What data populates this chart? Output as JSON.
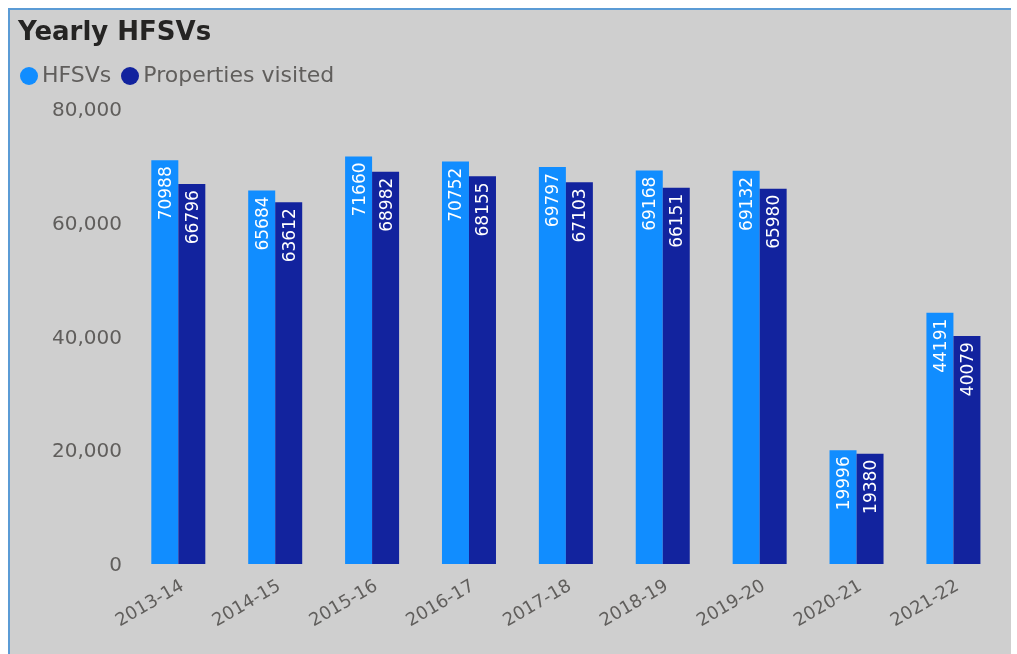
{
  "chart_data": {
    "type": "bar",
    "title": "Yearly HFSVs",
    "categories": [
      "2013-14",
      "2014-15",
      "2015-16",
      "2016-17",
      "2017-18",
      "2018-19",
      "2019-20",
      "2020-21",
      "2021-22"
    ],
    "series": [
      {
        "name": "HFSVs",
        "color": "#118dff",
        "values": [
          70988,
          65684,
          71660,
          70752,
          69797,
          69168,
          69132,
          19996,
          44191
        ]
      },
      {
        "name": "Properties visited",
        "color": "#12239e",
        "values": [
          66796,
          63612,
          68982,
          68155,
          67103,
          66151,
          65980,
          19380,
          40079
        ]
      }
    ],
    "ylim": [
      0,
      80000
    ],
    "yticks": [
      {
        "value": 0,
        "label": "0"
      },
      {
        "value": 20000,
        "label": "20,000"
      },
      {
        "value": 40000,
        "label": "40,000"
      },
      {
        "value": 60000,
        "label": "60,000"
      },
      {
        "value": 80000,
        "label": "80,000"
      }
    ],
    "legend": "top left",
    "data_labels": true
  }
}
